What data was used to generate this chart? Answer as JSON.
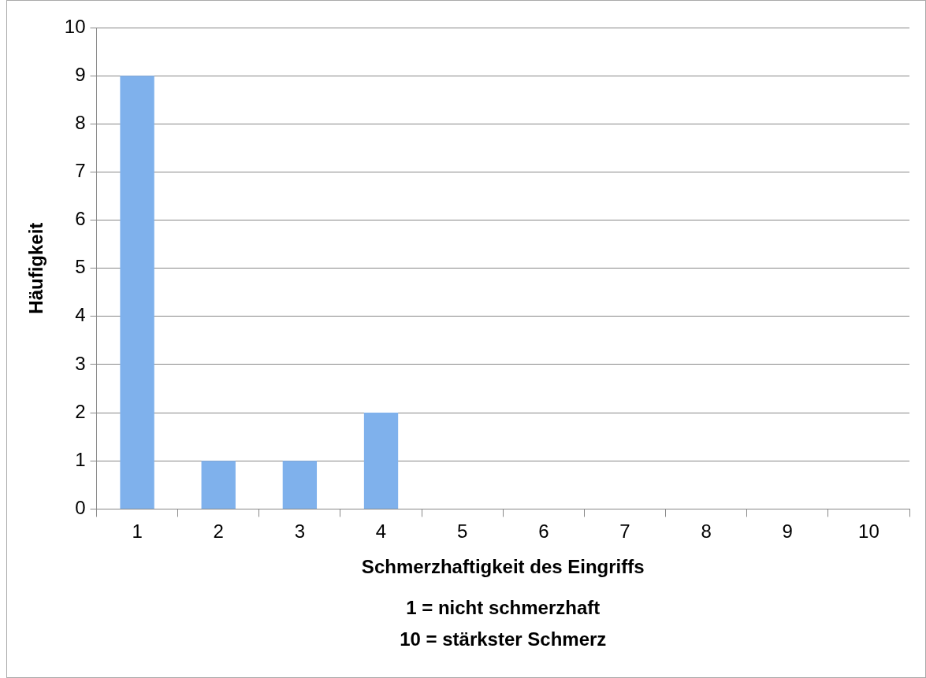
{
  "chart_data": {
    "type": "bar",
    "xlabel": "Schmerzhaftigkeit des Eingriffs",
    "ylabel": "Häufigkeit",
    "categories": [
      "1",
      "2",
      "3",
      "4",
      "5",
      "6",
      "7",
      "8",
      "9",
      "10"
    ],
    "values": [
      9,
      1,
      1,
      2,
      0,
      0,
      0,
      0,
      0,
      0
    ],
    "color": "#7fb1ec",
    "ylim": [
      0,
      10
    ],
    "yticks": [
      0,
      1,
      2,
      3,
      4,
      5,
      6,
      7,
      8,
      9,
      10
    ],
    "grid": "y",
    "legend": false,
    "annotations": [
      "1 = nicht schmerzhaft",
      "10 = stärkster Schmerz"
    ]
  }
}
